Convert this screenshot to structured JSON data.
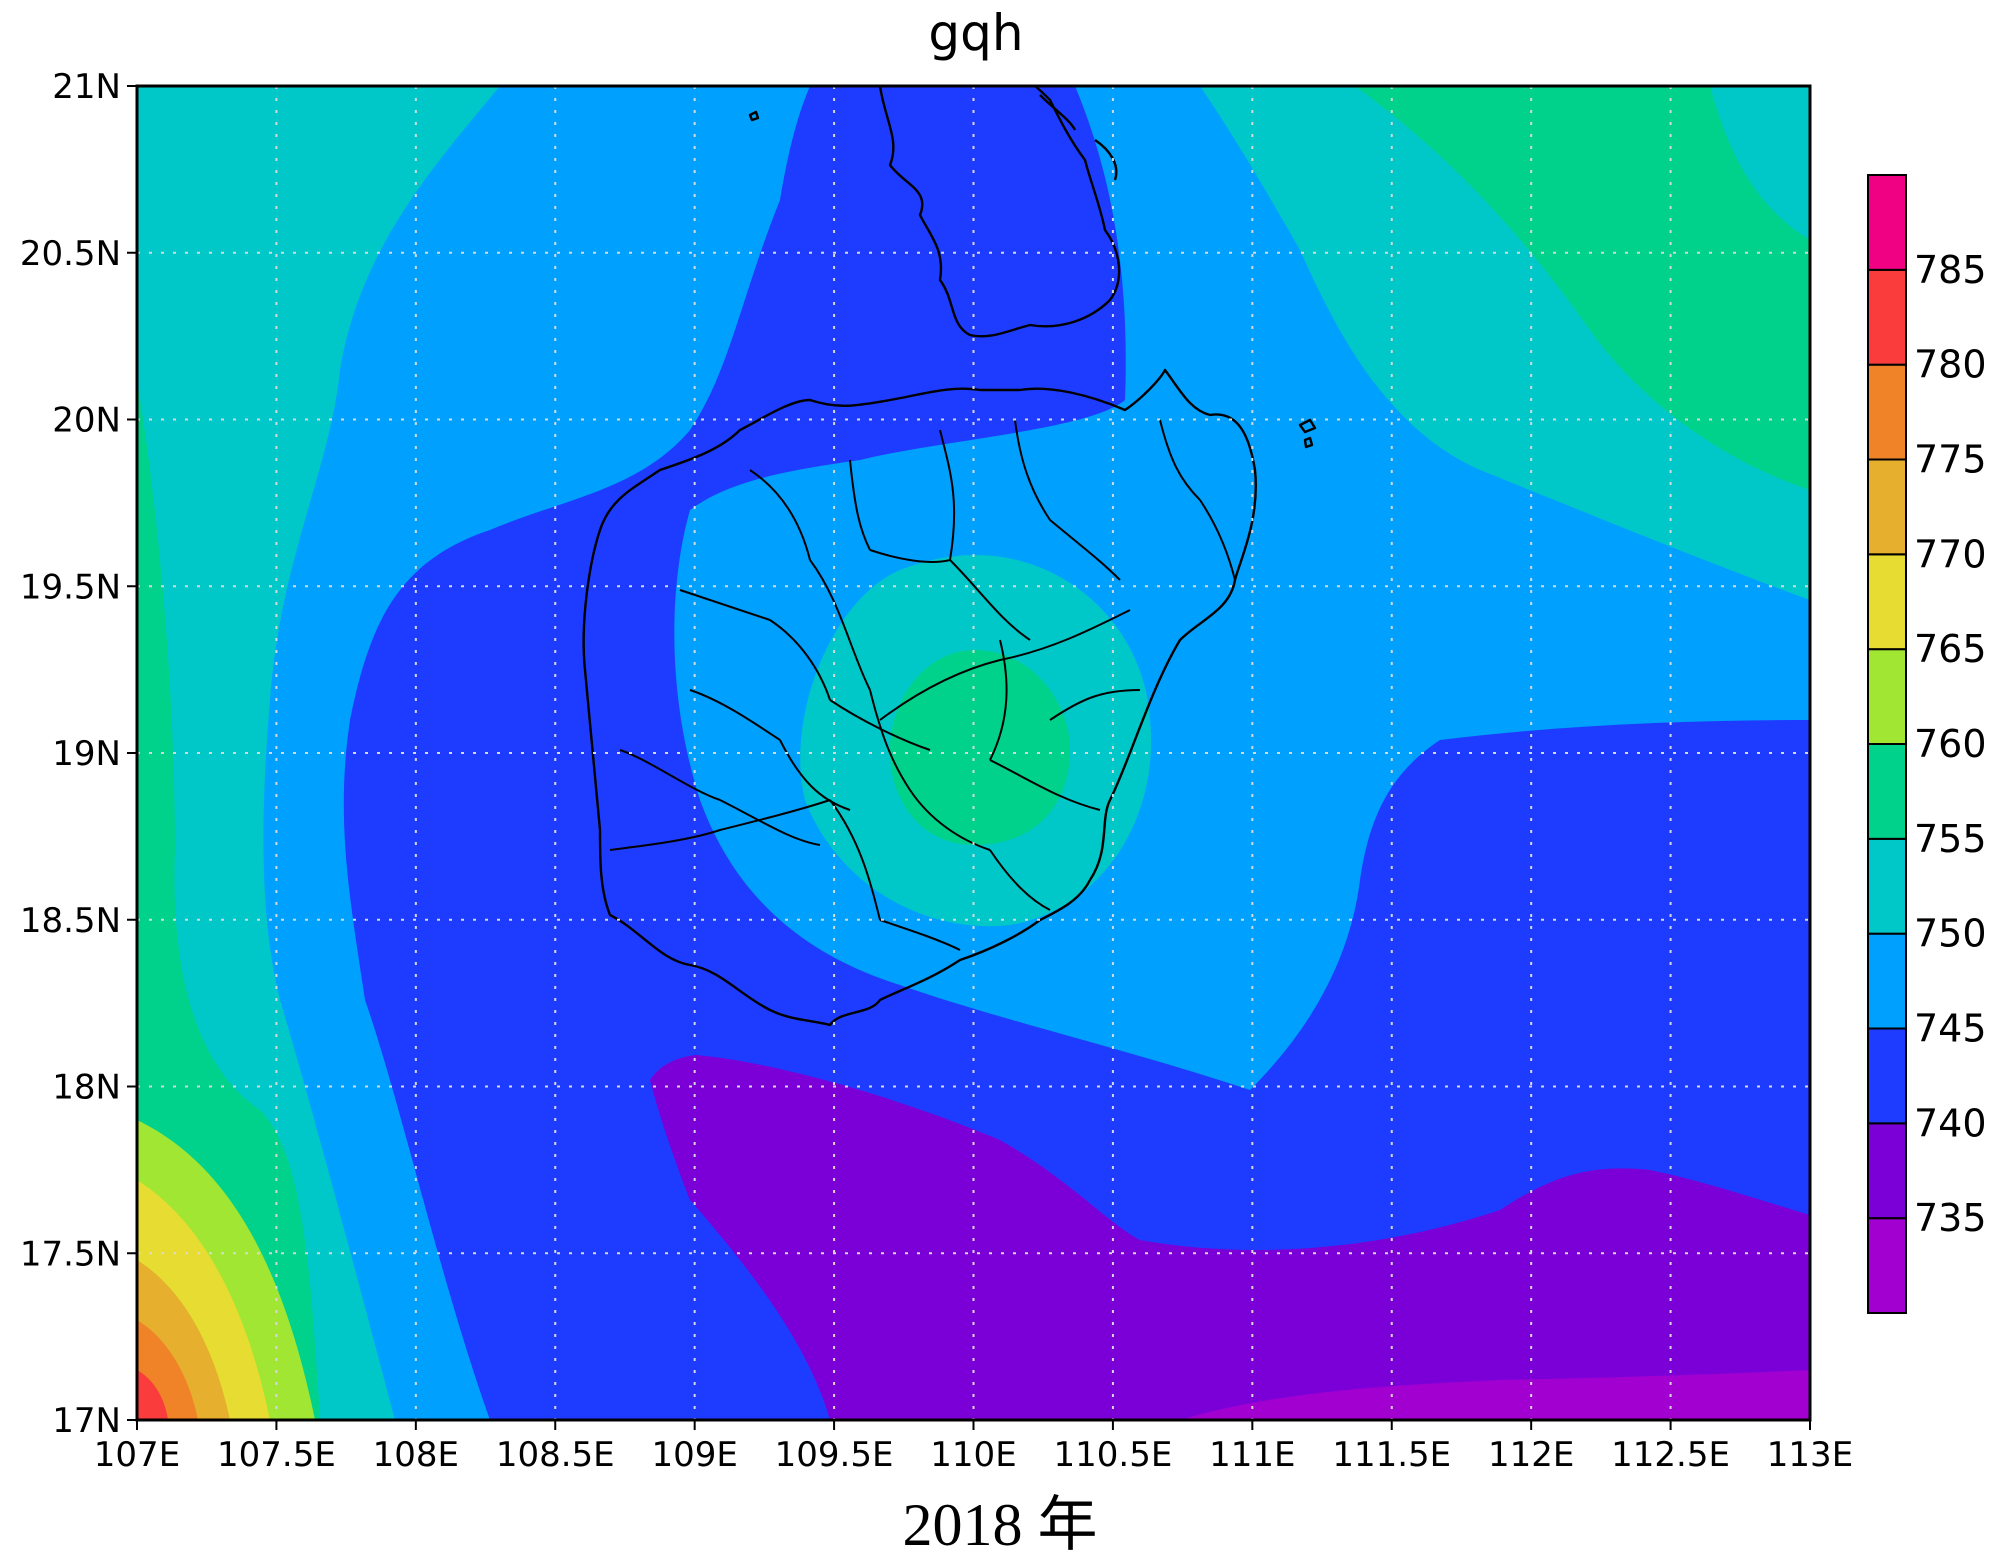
{
  "title": "gqh",
  "caption": "2018 年",
  "map": {
    "lon_range": [
      107,
      113
    ],
    "lat_range": [
      17,
      21
    ],
    "grid_lines": "dotted",
    "lon_ticks": [
      "107E",
      "107.5E",
      "108E",
      "108.5E",
      "109E",
      "109.5E",
      "110E",
      "110.5E",
      "111E",
      "111.5E",
      "112E",
      "112.5E",
      "113E"
    ],
    "lat_ticks": [
      "17N",
      "17.5N",
      "18N",
      "18.5N",
      "19N",
      "19.5N",
      "20N",
      "20.5N",
      "21N"
    ]
  },
  "colorbar": {
    "placement": "right",
    "labels": [
      "735",
      "740",
      "745",
      "750",
      "755",
      "760",
      "765",
      "770",
      "775",
      "780",
      "785"
    ],
    "colors": [
      "#a100d0",
      "#7b00d8",
      "#1e3cff",
      "#00a0ff",
      "#00c8c8",
      "#00d28c",
      "#a0e632",
      "#e6dc32",
      "#e6af2d",
      "#f08228",
      "#fa3c3c",
      "#f00082"
    ]
  },
  "fill_colors": {
    "c730": "#a100d0",
    "c735": "#7b00d8",
    "c740": "#1e3cff",
    "c745": "#00a0ff",
    "c750": "#00c8c8",
    "c755": "#00d28c",
    "c760": "#a0e632",
    "c765": "#e6dc32",
    "c770": "#e6af2d",
    "c775": "#f08228",
    "c780": "#fa3c3c"
  }
}
